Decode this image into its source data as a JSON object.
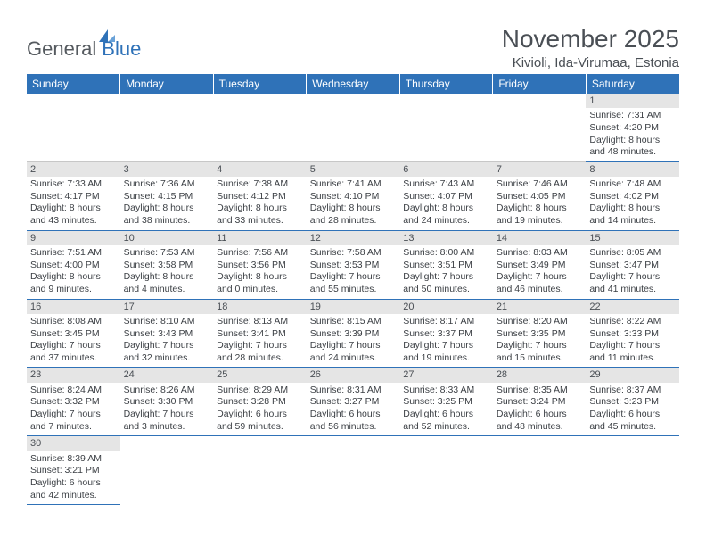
{
  "logo": {
    "part1": "General",
    "part2": "Blue"
  },
  "title": "November 2025",
  "location": "Kivioli, Ida-Virumaa, Estonia",
  "colors": {
    "header_bg": "#2f72b8",
    "header_text": "#ffffff",
    "daynum_bg": "#e5e5e5",
    "border": "#2f72b8",
    "logo_gray": "#555a5f",
    "logo_blue": "#2f72b8"
  },
  "day_headers": [
    "Sunday",
    "Monday",
    "Tuesday",
    "Wednesday",
    "Thursday",
    "Friday",
    "Saturday"
  ],
  "weeks": [
    [
      null,
      null,
      null,
      null,
      null,
      null,
      {
        "n": "1",
        "sr": "Sunrise: 7:31 AM",
        "ss": "Sunset: 4:20 PM",
        "dl": "Daylight: 8 hours and 48 minutes."
      }
    ],
    [
      {
        "n": "2",
        "sr": "Sunrise: 7:33 AM",
        "ss": "Sunset: 4:17 PM",
        "dl": "Daylight: 8 hours and 43 minutes."
      },
      {
        "n": "3",
        "sr": "Sunrise: 7:36 AM",
        "ss": "Sunset: 4:15 PM",
        "dl": "Daylight: 8 hours and 38 minutes."
      },
      {
        "n": "4",
        "sr": "Sunrise: 7:38 AM",
        "ss": "Sunset: 4:12 PM",
        "dl": "Daylight: 8 hours and 33 minutes."
      },
      {
        "n": "5",
        "sr": "Sunrise: 7:41 AM",
        "ss": "Sunset: 4:10 PM",
        "dl": "Daylight: 8 hours and 28 minutes."
      },
      {
        "n": "6",
        "sr": "Sunrise: 7:43 AM",
        "ss": "Sunset: 4:07 PM",
        "dl": "Daylight: 8 hours and 24 minutes."
      },
      {
        "n": "7",
        "sr": "Sunrise: 7:46 AM",
        "ss": "Sunset: 4:05 PM",
        "dl": "Daylight: 8 hours and 19 minutes."
      },
      {
        "n": "8",
        "sr": "Sunrise: 7:48 AM",
        "ss": "Sunset: 4:02 PM",
        "dl": "Daylight: 8 hours and 14 minutes."
      }
    ],
    [
      {
        "n": "9",
        "sr": "Sunrise: 7:51 AM",
        "ss": "Sunset: 4:00 PM",
        "dl": "Daylight: 8 hours and 9 minutes."
      },
      {
        "n": "10",
        "sr": "Sunrise: 7:53 AM",
        "ss": "Sunset: 3:58 PM",
        "dl": "Daylight: 8 hours and 4 minutes."
      },
      {
        "n": "11",
        "sr": "Sunrise: 7:56 AM",
        "ss": "Sunset: 3:56 PM",
        "dl": "Daylight: 8 hours and 0 minutes."
      },
      {
        "n": "12",
        "sr": "Sunrise: 7:58 AM",
        "ss": "Sunset: 3:53 PM",
        "dl": "Daylight: 7 hours and 55 minutes."
      },
      {
        "n": "13",
        "sr": "Sunrise: 8:00 AM",
        "ss": "Sunset: 3:51 PM",
        "dl": "Daylight: 7 hours and 50 minutes."
      },
      {
        "n": "14",
        "sr": "Sunrise: 8:03 AM",
        "ss": "Sunset: 3:49 PM",
        "dl": "Daylight: 7 hours and 46 minutes."
      },
      {
        "n": "15",
        "sr": "Sunrise: 8:05 AM",
        "ss": "Sunset: 3:47 PM",
        "dl": "Daylight: 7 hours and 41 minutes."
      }
    ],
    [
      {
        "n": "16",
        "sr": "Sunrise: 8:08 AM",
        "ss": "Sunset: 3:45 PM",
        "dl": "Daylight: 7 hours and 37 minutes."
      },
      {
        "n": "17",
        "sr": "Sunrise: 8:10 AM",
        "ss": "Sunset: 3:43 PM",
        "dl": "Daylight: 7 hours and 32 minutes."
      },
      {
        "n": "18",
        "sr": "Sunrise: 8:13 AM",
        "ss": "Sunset: 3:41 PM",
        "dl": "Daylight: 7 hours and 28 minutes."
      },
      {
        "n": "19",
        "sr": "Sunrise: 8:15 AM",
        "ss": "Sunset: 3:39 PM",
        "dl": "Daylight: 7 hours and 24 minutes."
      },
      {
        "n": "20",
        "sr": "Sunrise: 8:17 AM",
        "ss": "Sunset: 3:37 PM",
        "dl": "Daylight: 7 hours and 19 minutes."
      },
      {
        "n": "21",
        "sr": "Sunrise: 8:20 AM",
        "ss": "Sunset: 3:35 PM",
        "dl": "Daylight: 7 hours and 15 minutes."
      },
      {
        "n": "22",
        "sr": "Sunrise: 8:22 AM",
        "ss": "Sunset: 3:33 PM",
        "dl": "Daylight: 7 hours and 11 minutes."
      }
    ],
    [
      {
        "n": "23",
        "sr": "Sunrise: 8:24 AM",
        "ss": "Sunset: 3:32 PM",
        "dl": "Daylight: 7 hours and 7 minutes."
      },
      {
        "n": "24",
        "sr": "Sunrise: 8:26 AM",
        "ss": "Sunset: 3:30 PM",
        "dl": "Daylight: 7 hours and 3 minutes."
      },
      {
        "n": "25",
        "sr": "Sunrise: 8:29 AM",
        "ss": "Sunset: 3:28 PM",
        "dl": "Daylight: 6 hours and 59 minutes."
      },
      {
        "n": "26",
        "sr": "Sunrise: 8:31 AM",
        "ss": "Sunset: 3:27 PM",
        "dl": "Daylight: 6 hours and 56 minutes."
      },
      {
        "n": "27",
        "sr": "Sunrise: 8:33 AM",
        "ss": "Sunset: 3:25 PM",
        "dl": "Daylight: 6 hours and 52 minutes."
      },
      {
        "n": "28",
        "sr": "Sunrise: 8:35 AM",
        "ss": "Sunset: 3:24 PM",
        "dl": "Daylight: 6 hours and 48 minutes."
      },
      {
        "n": "29",
        "sr": "Sunrise: 8:37 AM",
        "ss": "Sunset: 3:23 PM",
        "dl": "Daylight: 6 hours and 45 minutes."
      }
    ],
    [
      {
        "n": "30",
        "sr": "Sunrise: 8:39 AM",
        "ss": "Sunset: 3:21 PM",
        "dl": "Daylight: 6 hours and 42 minutes."
      },
      null,
      null,
      null,
      null,
      null,
      null
    ]
  ]
}
